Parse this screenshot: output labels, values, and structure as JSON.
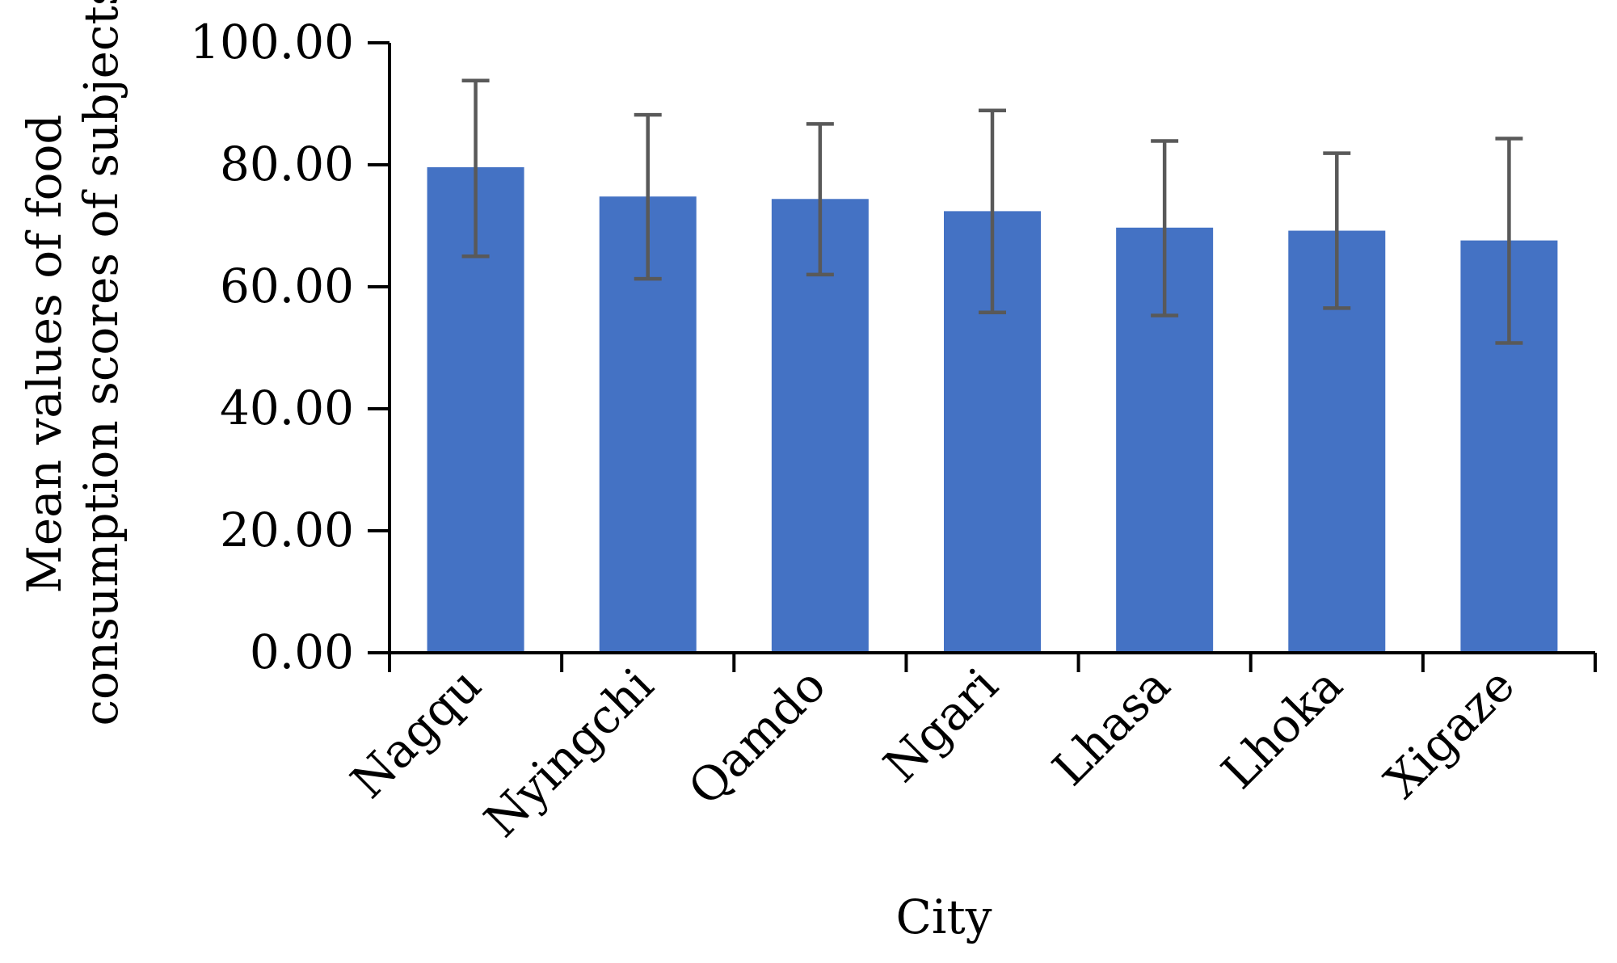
{
  "chart_data": {
    "type": "bar",
    "title": "",
    "xlabel": "City",
    "ylabel_lines": [
      "Mean values of food",
      "consumption scores of subjects"
    ],
    "categories": [
      "Nagqu",
      "Nyingchi",
      "Qamdo",
      "Ngari",
      "Lhasa",
      "Lhoka",
      "Xigaze"
    ],
    "series": [
      {
        "values": [
          79.6,
          74.8,
          74.4,
          72.4,
          69.7,
          69.2,
          67.6
        ],
        "error_low": [
          65.0,
          61.3,
          62.0,
          55.8,
          55.3,
          56.5,
          50.8
        ],
        "error_high": [
          93.8,
          88.2,
          86.7,
          88.9,
          83.9,
          81.9,
          84.3
        ]
      }
    ],
    "ylim": [
      0,
      100
    ],
    "yticks": [
      "0.00",
      "20.00",
      "40.00",
      "60.00",
      "80.00",
      "100.00"
    ],
    "grid": false,
    "legend": "none",
    "colors": {
      "bar": "#4472C4",
      "error_bar": "#595959",
      "axis": "#000000"
    }
  }
}
